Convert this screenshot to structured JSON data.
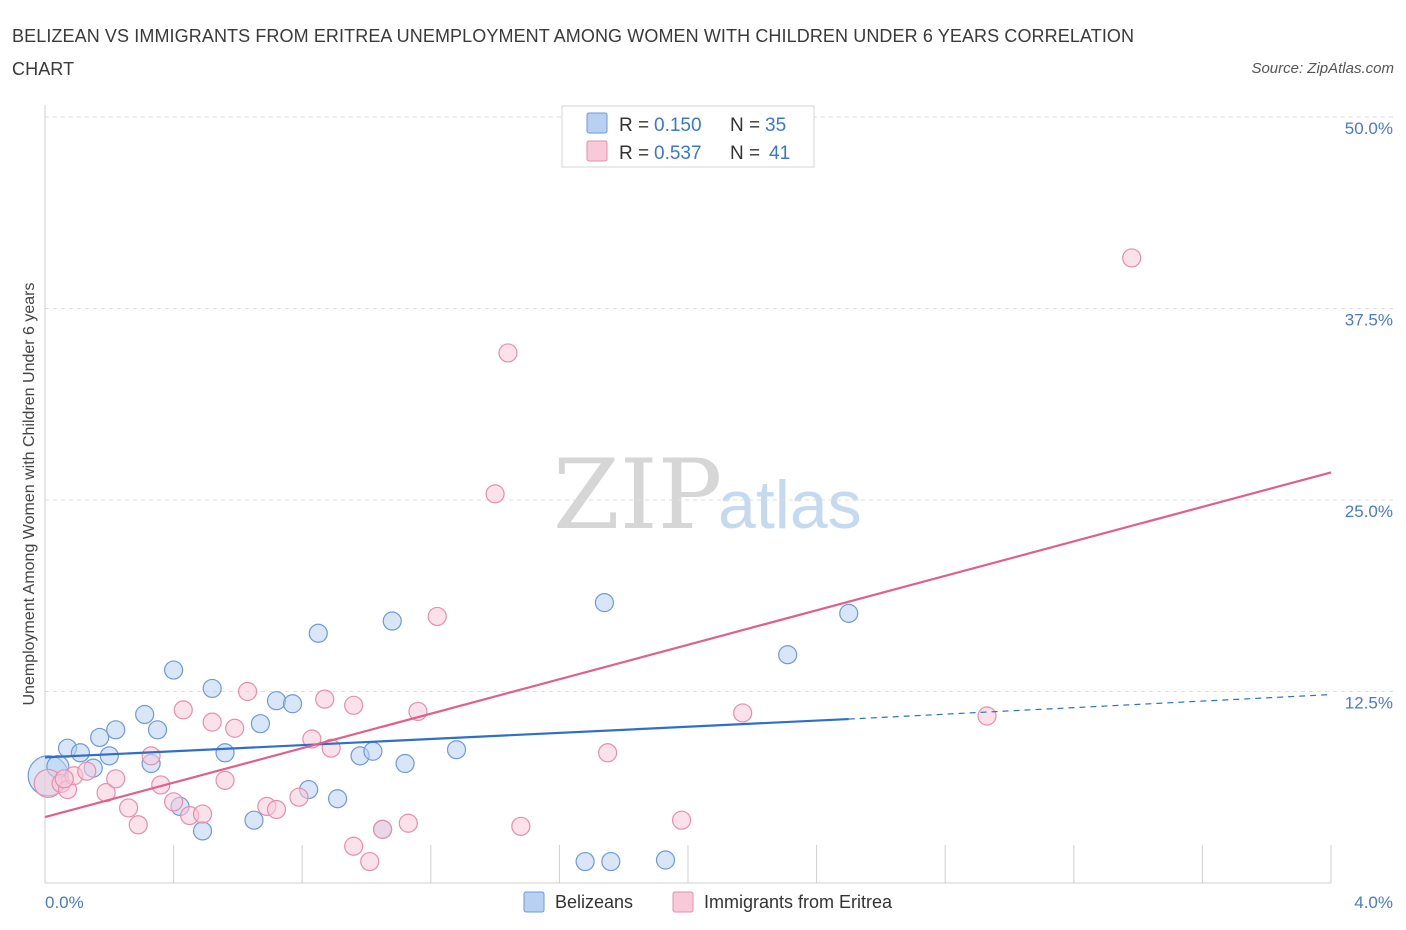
{
  "chart_data": {
    "type": "scatter",
    "title": "BELIZEAN VS IMMIGRANTS FROM ERITREA UNEMPLOYMENT AMONG WOMEN WITH CHILDREN UNDER 6 YEARS CORRELATION CHART",
    "source": "Source: ZipAtlas.com",
    "xlabel": "",
    "ylabel": "Unemployment Among Women with Children Under 6 years",
    "xlim": [
      0,
      4
    ],
    "ylim": [
      0,
      50
    ],
    "x_tick_labels": [
      "0.0%",
      "4.0%"
    ],
    "y_ticks": [
      {
        "value": 12.5,
        "label": "12.5%"
      },
      {
        "value": 25,
        "label": "25.0%"
      },
      {
        "value": 37.5,
        "label": "37.5%"
      },
      {
        "value": 50,
        "label": "50.0%"
      }
    ],
    "grid": "horizontal dashed",
    "legend": {
      "placement": "top-center",
      "entries": [
        {
          "r_label": "R =",
          "r_value": "0.150",
          "n_label": "N =",
          "n_value": "35"
        },
        {
          "r_label": "R =",
          "r_value": "0.537",
          "n_label": "N =",
          "n_value": "41"
        }
      ]
    },
    "watermark": {
      "zip": "ZIP",
      "atlas": "atlas"
    },
    "series": [
      {
        "name": "Belizeans",
        "fill": "#b8d1f3",
        "stroke": "#6f9ad6",
        "line_color": "#2f6fcc",
        "trend": {
          "x0": 0.0,
          "y0": 8.2,
          "x1": 2.5,
          "y1": 10.7,
          "dash_to_x": 4.0,
          "dash_to_y": 12.3
        },
        "points": [
          [
            0.01,
            7.0,
            20
          ],
          [
            0.04,
            7.6,
            11
          ],
          [
            0.07,
            8.8,
            9
          ],
          [
            0.11,
            8.5,
            9
          ],
          [
            0.15,
            7.5,
            9
          ],
          [
            0.17,
            9.5,
            9
          ],
          [
            0.22,
            10.0,
            9
          ],
          [
            0.31,
            11.0,
            9
          ],
          [
            0.33,
            7.8,
            9
          ],
          [
            0.35,
            10.0,
            9
          ],
          [
            0.4,
            13.9,
            9
          ],
          [
            0.42,
            5.0,
            9
          ],
          [
            0.49,
            3.4,
            9
          ],
          [
            0.52,
            12.7,
            9
          ],
          [
            0.56,
            8.5,
            9
          ],
          [
            0.65,
            4.1,
            9
          ],
          [
            0.67,
            10.4,
            9
          ],
          [
            0.72,
            11.9,
            9
          ],
          [
            0.77,
            11.7,
            9
          ],
          [
            0.82,
            6.1,
            9
          ],
          [
            0.85,
            16.3,
            9
          ],
          [
            0.91,
            5.5,
            9
          ],
          [
            0.98,
            8.3,
            9
          ],
          [
            1.02,
            8.6,
            9
          ],
          [
            1.05,
            3.5,
            9
          ],
          [
            1.08,
            17.1,
            9
          ],
          [
            1.12,
            7.8,
            9
          ],
          [
            1.28,
            8.7,
            9
          ],
          [
            1.68,
            1.4,
            9
          ],
          [
            1.74,
            18.3,
            9
          ],
          [
            1.76,
            1.4,
            9
          ],
          [
            1.93,
            1.5,
            9
          ],
          [
            2.31,
            14.9,
            9
          ],
          [
            2.5,
            17.6,
            9
          ],
          [
            0.2,
            8.3,
            9
          ]
        ]
      },
      {
        "name": "Immigrants from Eritrea",
        "fill": "#f8c9d8",
        "stroke": "#e68fab",
        "line_color": "#e0608a",
        "trend": {
          "x0": 0.0,
          "y0": 4.3,
          "x1": 4.0,
          "y1": 26.8
        },
        "points": [
          [
            0.01,
            6.5,
            14
          ],
          [
            0.05,
            6.5,
            9
          ],
          [
            0.07,
            6.1,
            9
          ],
          [
            0.09,
            7.0,
            9
          ],
          [
            0.13,
            7.3,
            9
          ],
          [
            0.19,
            5.9,
            9
          ],
          [
            0.22,
            6.8,
            9
          ],
          [
            0.26,
            4.9,
            9
          ],
          [
            0.29,
            3.8,
            9
          ],
          [
            0.33,
            8.3,
            9
          ],
          [
            0.36,
            6.4,
            9
          ],
          [
            0.4,
            5.3,
            9
          ],
          [
            0.43,
            11.3,
            9
          ],
          [
            0.45,
            4.4,
            9
          ],
          [
            0.49,
            4.5,
            9
          ],
          [
            0.52,
            10.5,
            9
          ],
          [
            0.56,
            6.7,
            9
          ],
          [
            0.59,
            10.1,
            9
          ],
          [
            0.63,
            12.5,
            9
          ],
          [
            0.69,
            5.0,
            9
          ],
          [
            0.72,
            4.8,
            9
          ],
          [
            0.79,
            5.6,
            9
          ],
          [
            0.83,
            9.4,
            9
          ],
          [
            0.87,
            12.0,
            9
          ],
          [
            0.89,
            8.8,
            9
          ],
          [
            0.96,
            11.6,
            9
          ],
          [
            0.96,
            2.4,
            9
          ],
          [
            1.01,
            1.4,
            9
          ],
          [
            1.05,
            3.5,
            9
          ],
          [
            1.13,
            3.9,
            9
          ],
          [
            1.16,
            11.2,
            9
          ],
          [
            1.22,
            17.4,
            9
          ],
          [
            1.4,
            25.4,
            9
          ],
          [
            1.44,
            34.6,
            9
          ],
          [
            1.48,
            3.7,
            9
          ],
          [
            1.75,
            8.5,
            9
          ],
          [
            1.98,
            4.1,
            9
          ],
          [
            2.17,
            11.1,
            9
          ],
          [
            2.93,
            10.9,
            9
          ],
          [
            3.38,
            40.8,
            9
          ],
          [
            0.06,
            6.8,
            9
          ]
        ]
      }
    ]
  }
}
